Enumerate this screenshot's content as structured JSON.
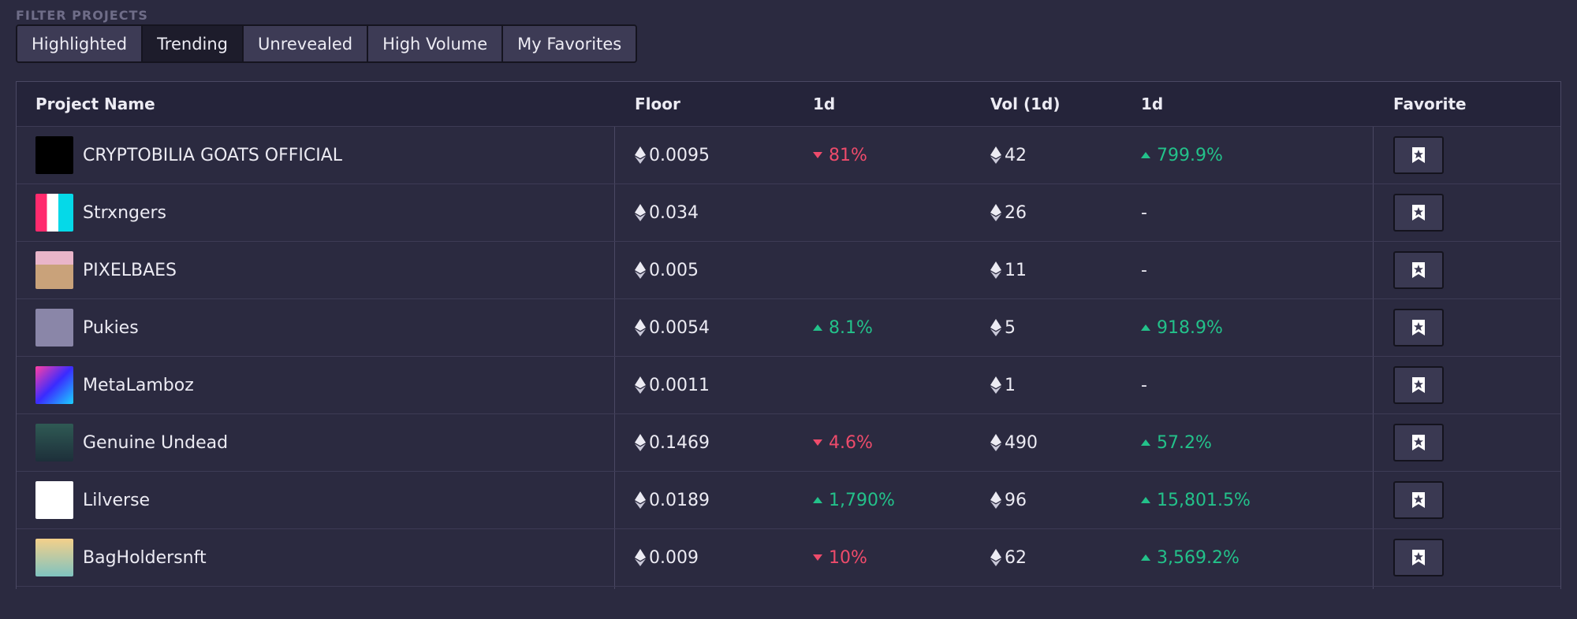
{
  "filter": {
    "label": "FILTER PROJECTS",
    "tabs": [
      {
        "label": "Highlighted"
      },
      {
        "label": "Trending"
      },
      {
        "label": "Unrevealed"
      },
      {
        "label": "High Volume"
      },
      {
        "label": "My Favorites"
      }
    ],
    "active_tab": "Trending"
  },
  "table": {
    "headers": {
      "name": "Project Name",
      "floor": "Floor",
      "floor_change": "1d",
      "volume": "Vol (1d)",
      "volume_change": "1d",
      "favorite": "Favorite"
    },
    "rows": [
      {
        "name": "CRYPTOBILIA GOATS OFFICIAL",
        "floor": "0.0095",
        "floor_change": "81%",
        "floor_dir": "down",
        "volume": "42",
        "volume_change": "799.9%",
        "volume_dir": "up"
      },
      {
        "name": "Strxngers",
        "floor": "0.034",
        "floor_change": "",
        "floor_dir": "",
        "volume": "26",
        "volume_change": "-",
        "volume_dir": ""
      },
      {
        "name": "PIXELBAES",
        "floor": "0.005",
        "floor_change": "",
        "floor_dir": "",
        "volume": "11",
        "volume_change": "-",
        "volume_dir": ""
      },
      {
        "name": "Pukies",
        "floor": "0.0054",
        "floor_change": "8.1%",
        "floor_dir": "up",
        "volume": "5",
        "volume_change": "918.9%",
        "volume_dir": "up"
      },
      {
        "name": "MetaLamboz",
        "floor": "0.0011",
        "floor_change": "",
        "floor_dir": "",
        "volume": "1",
        "volume_change": "-",
        "volume_dir": ""
      },
      {
        "name": "Genuine Undead",
        "floor": "0.1469",
        "floor_change": "4.6%",
        "floor_dir": "down",
        "volume": "490",
        "volume_change": "57.2%",
        "volume_dir": "up"
      },
      {
        "name": "Lilverse",
        "floor": "0.0189",
        "floor_change": "1,790%",
        "floor_dir": "up",
        "volume": "96",
        "volume_change": "15,801.5%",
        "volume_dir": "up"
      },
      {
        "name": "BagHoldersnft",
        "floor": "0.009",
        "floor_change": "10%",
        "floor_dir": "down",
        "volume": "62",
        "volume_change": "3,569.2%",
        "volume_dir": "up"
      }
    ]
  },
  "colors": {
    "background": "#2b2a40",
    "up": "#23c18a",
    "down": "#ee4b6b",
    "active_tab": "#1d1c2b",
    "tab": "#3d3b55"
  },
  "icons": {
    "currency": "ethereum-icon",
    "favorite": "bookmark-star-icon",
    "up": "triangle-up-icon",
    "down": "triangle-down-icon"
  }
}
